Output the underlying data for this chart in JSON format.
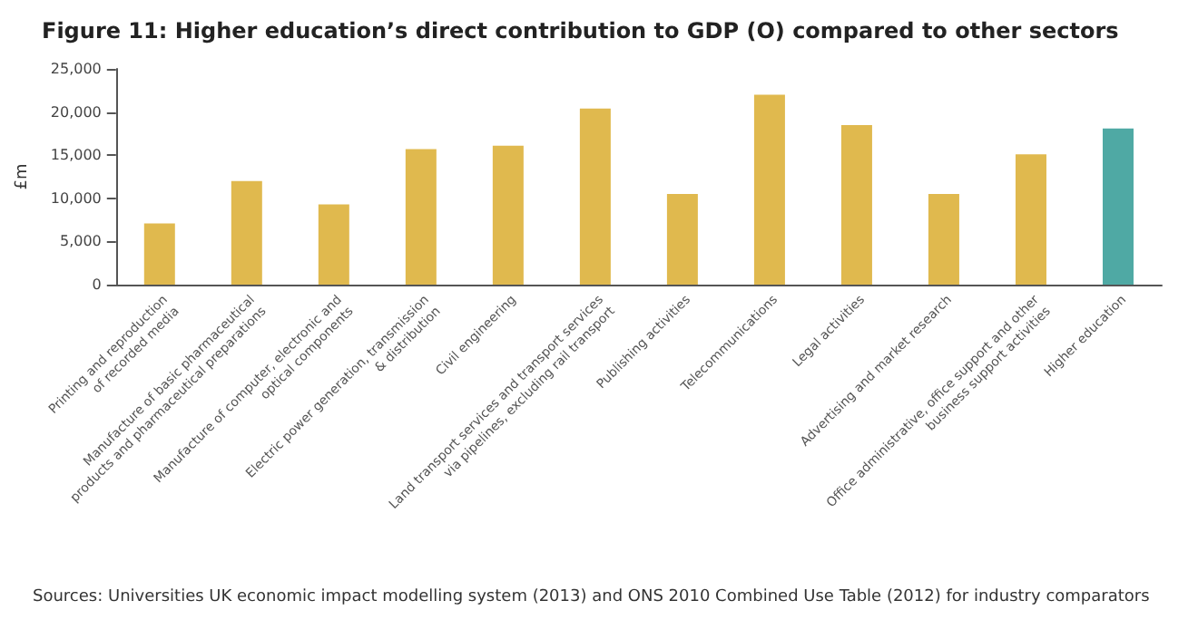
{
  "chart_data": {
    "type": "bar",
    "title": "Figure 11: Higher education’s direct contribution to GDP (O) compared to other sectors",
    "ylabel": "£m",
    "categories": [
      "Printing and reproduction\nof recorded media",
      "Manufacture of basic pharmaceutical\nproducts and pharmaceutical preparations",
      "Manufacture of computer, electronic and\noptical components",
      "Electric power generation, transmission\n& distribution",
      "Civil engineering",
      "Land transport services and transport services\nvia pipelines, excluding rail transport",
      "Publishing activities",
      "Telecommunications",
      "Legal activities",
      "Advertising and market research",
      "Office administrative, office support and other\nbusiness support activities",
      "Higher education"
    ],
    "values": [
      7100,
      12000,
      9300,
      15700,
      16100,
      20400,
      10500,
      22000,
      18500,
      10500,
      15100,
      18100
    ],
    "colors": [
      "#e0b94e",
      "#e0b94e",
      "#e0b94e",
      "#e0b94e",
      "#e0b94e",
      "#e0b94e",
      "#e0b94e",
      "#e0b94e",
      "#e0b94e",
      "#e0b94e",
      "#e0b94e",
      "#4fa9a4"
    ],
    "ylim": [
      0,
      25000
    ],
    "yticks": [
      0,
      {
        "value": 5000,
        "label": "5,000"
      },
      {
        "value": 10000,
        "label": "10,000"
      },
      {
        "value": 15000,
        "label": "15,000"
      },
      {
        "value": 20000,
        "label": "20,000"
      },
      {
        "value": 25000,
        "label": "25,000"
      }
    ],
    "grid": false,
    "annotations": [
      "Sources: Universities UK economic impact modelling system (2013) and ONS 2010 Combined Use Table (2012) for industry comparators"
    ]
  }
}
